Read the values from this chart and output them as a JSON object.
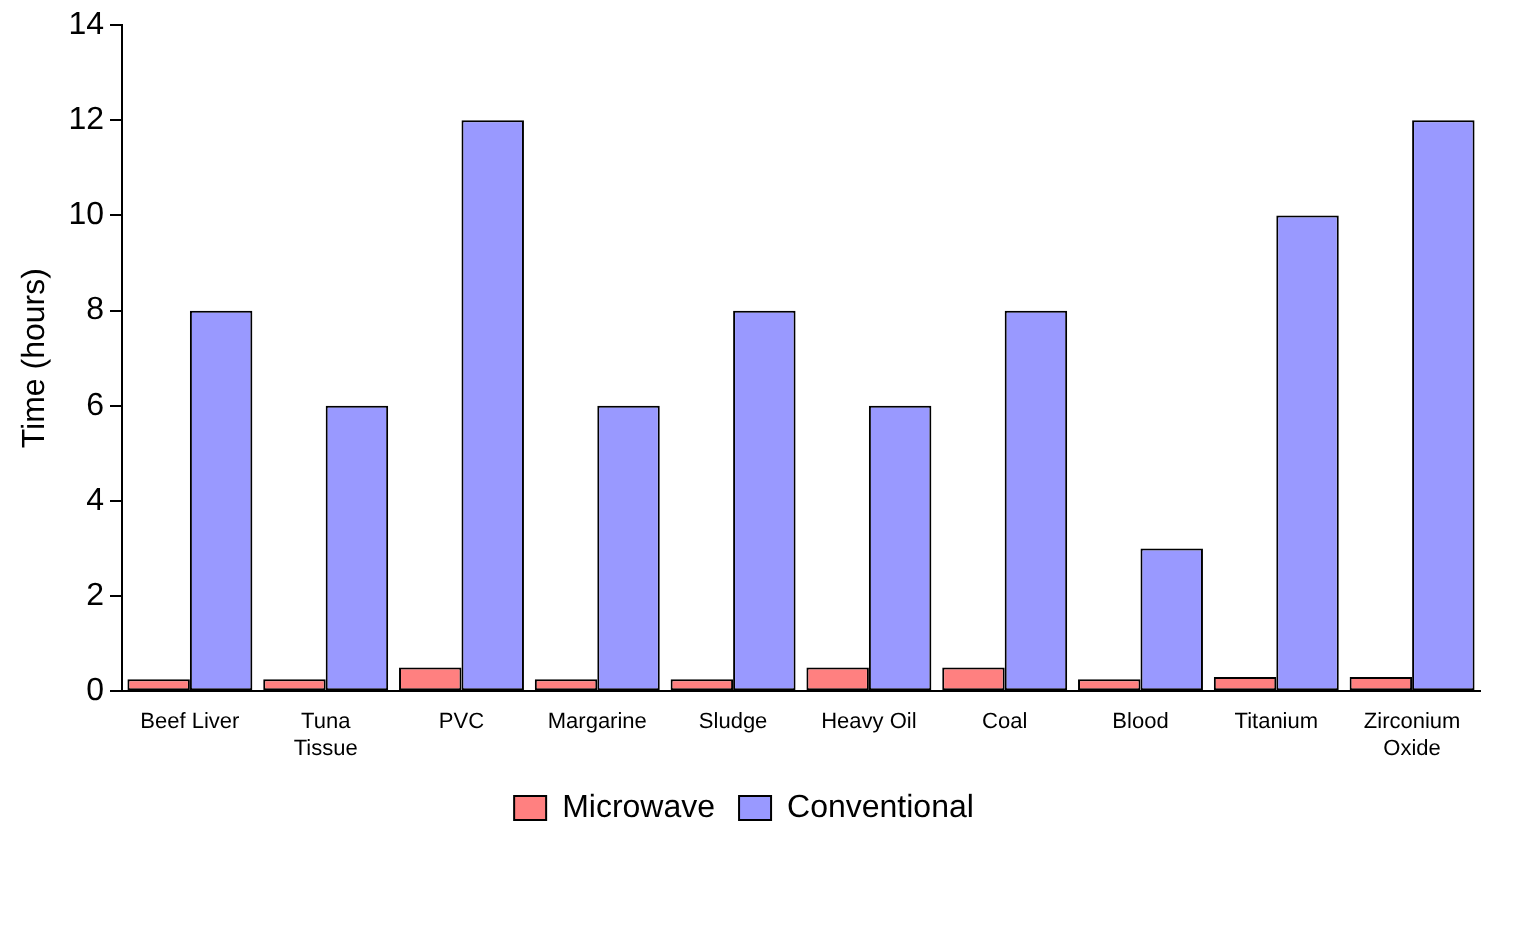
{
  "chart_data": {
    "type": "bar",
    "ylabel": "Time (hours)",
    "categories": [
      "Beef Liver",
      "Tuna\nTissue",
      "PVC",
      "Margarine",
      "Sludge",
      "Heavy Oil",
      "Coal",
      "Blood",
      "Titanium",
      "Zirconium\nOxide"
    ],
    "series": [
      {
        "name": "Microwave",
        "color": "#ff8080",
        "values": [
          0.25,
          0.25,
          0.5,
          0.25,
          0.25,
          0.5,
          0.5,
          0.25,
          0.3,
          0.3
        ]
      },
      {
        "name": "Conventional",
        "color": "#9999ff",
        "values": [
          8,
          6,
          12,
          6,
          8,
          6,
          8,
          3,
          10,
          12
        ]
      }
    ],
    "ylim": [
      0,
      14
    ],
    "yticks": [
      0,
      2,
      4,
      6,
      8,
      10,
      12,
      14
    ],
    "grid": false,
    "legend": "bottom"
  }
}
